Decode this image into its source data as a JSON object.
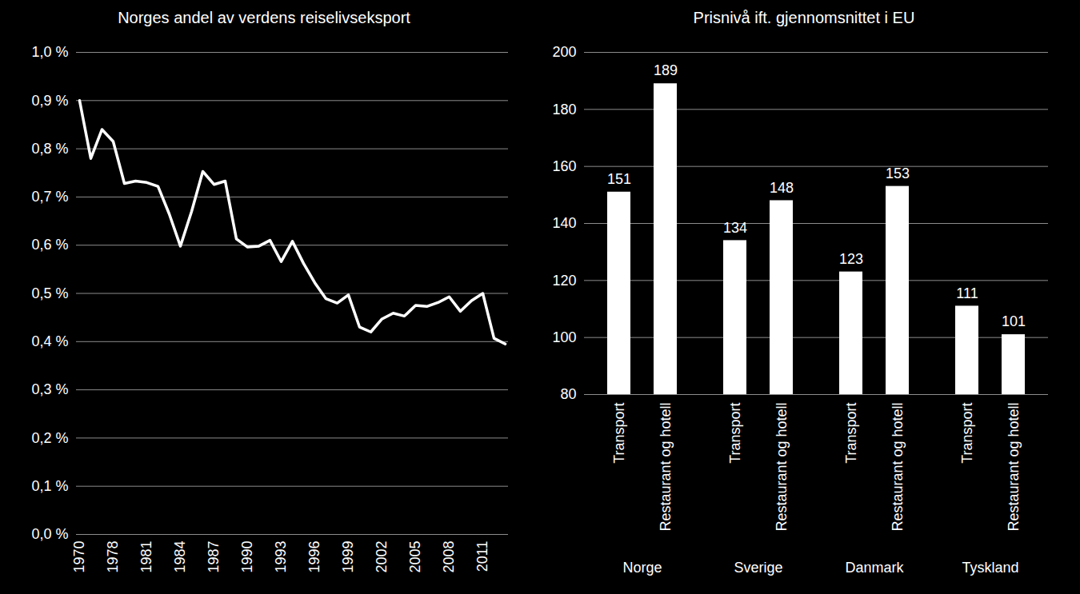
{
  "chart_data": [
    {
      "type": "line",
      "title": "Norges andel av verdens reiselivseksport",
      "categories": [
        "1970",
        null,
        null,
        "1978",
        null,
        null,
        "1981",
        null,
        null,
        "1984",
        null,
        null,
        "1987",
        null,
        null,
        "1990",
        null,
        null,
        "1993",
        null,
        null,
        "1996",
        null,
        null,
        "1999",
        null,
        null,
        "2002",
        null,
        null,
        "2005",
        null,
        null,
        "2008",
        null,
        null,
        "2011",
        null,
        null
      ],
      "values": [
        0.9,
        0.78,
        0.84,
        0.815,
        0.728,
        0.733,
        0.73,
        0.722,
        0.665,
        0.598,
        0.67,
        0.753,
        0.726,
        0.733,
        0.613,
        0.596,
        0.598,
        0.61,
        0.566,
        0.608,
        0.562,
        0.522,
        0.489,
        0.48,
        0.497,
        0.43,
        0.42,
        0.447,
        0.459,
        0.453,
        0.475,
        0.473,
        0.481,
        0.493,
        0.463,
        0.485,
        0.5,
        0.407,
        0.395
      ],
      "color": "#ffffff",
      "ylim": [
        0,
        1
      ],
      "yticks": [
        {
          "value": 0,
          "label": "0,0 %"
        },
        {
          "value": 0.1,
          "label": "0,1 %"
        },
        {
          "value": 0.2,
          "label": "0,2 %"
        },
        {
          "value": 0.3,
          "label": "0,3 %"
        },
        {
          "value": 0.4,
          "label": "0,4 %"
        },
        {
          "value": 0.5,
          "label": "0,5 %"
        },
        {
          "value": 0.6,
          "label": "0,6 %"
        },
        {
          "value": 0.7,
          "label": "0,7 %"
        },
        {
          "value": 0.8,
          "label": "0,8 %"
        },
        {
          "value": 0.9,
          "label": "0,9 %"
        },
        {
          "value": 1,
          "label": "1,0 %"
        }
      ],
      "grid": true
    },
    {
      "type": "bar",
      "title": "Prisnivå ift. gjennomsnittet i EU",
      "categories": [
        "Norge",
        "Sverige",
        "Danmark",
        "Tyskland"
      ],
      "series": [
        {
          "name": "Transport",
          "color": "#ffffff",
          "values": [
            151,
            134,
            123,
            111
          ]
        },
        {
          "name": "Restaurant og hotell",
          "color": "#ffffff",
          "values": [
            189,
            148,
            153,
            101
          ]
        }
      ],
      "ylim": [
        80,
        200
      ],
      "yticks": [
        80,
        100,
        120,
        140,
        160,
        180,
        200
      ],
      "grid": true,
      "data_labels": true
    }
  ]
}
